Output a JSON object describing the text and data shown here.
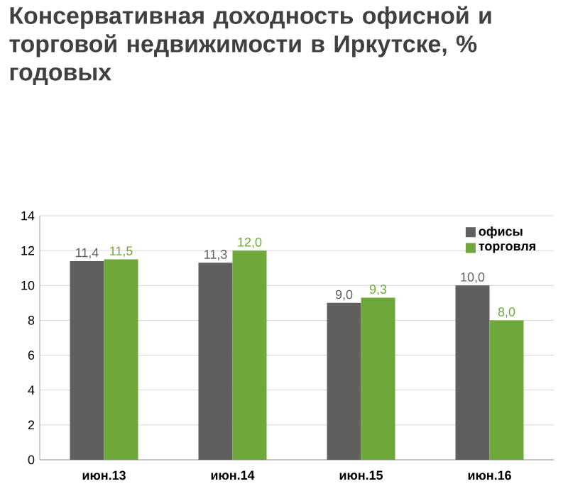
{
  "chart_data": {
    "type": "bar",
    "title": "Консервативная доходность офисной и торговой недвижимости в Иркутске, % годовых",
    "categories": [
      "июн.13",
      "июн.14",
      "июн.15",
      "июн.16"
    ],
    "series": [
      {
        "name": "офисы",
        "color": "#5f5f5f",
        "values": [
          11.4,
          11.3,
          9.0,
          10.0
        ],
        "value_labels": [
          "11,4",
          "11,3",
          "9,0",
          "10,0"
        ]
      },
      {
        "name": "торговля",
        "color": "#6ea83a",
        "values": [
          11.5,
          12.0,
          9.3,
          8.0
        ],
        "value_labels": [
          "11,5",
          "12,0",
          "9,3",
          "8,0"
        ]
      }
    ],
    "ylim": [
      0,
      14
    ],
    "yticks": [
      0,
      2,
      4,
      6,
      8,
      10,
      12,
      14
    ],
    "grid": "y",
    "legend": "top right"
  }
}
